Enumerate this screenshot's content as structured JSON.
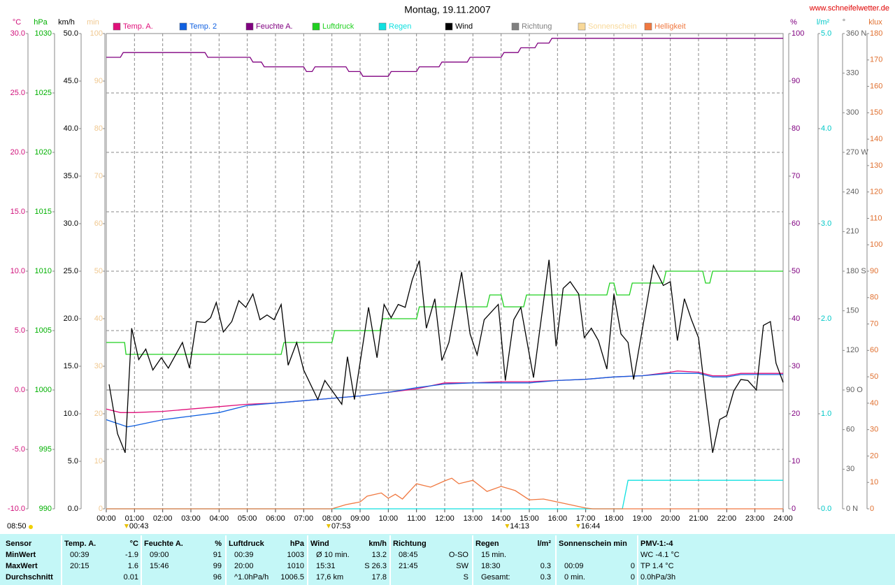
{
  "header": {
    "title": "Montag, 19.11.2007",
    "url": "www.schneifelwetter.de"
  },
  "chart_data": {
    "type": "line",
    "grid": true,
    "axes": {
      "temp": {
        "unit": "°C",
        "color": "#d0107a",
        "lim": [
          -10,
          30
        ],
        "ticks": [
          {
            "value": -10,
            "label": "-10.0"
          },
          {
            "value": -5,
            "label": "-5.0"
          },
          {
            "value": 0,
            "label": "0.0"
          },
          {
            "value": 5,
            "label": "5.0"
          },
          {
            "value": 10,
            "label": "10.0"
          },
          {
            "value": 15,
            "label": "15.0"
          },
          {
            "value": 20,
            "label": "20.0"
          },
          {
            "value": 25,
            "label": "25.0"
          },
          {
            "value": 30,
            "label": "30.0"
          }
        ]
      },
      "press": {
        "unit": "hPa",
        "color": "#00b000",
        "lim": [
          990,
          1030
        ],
        "ticks": [
          990,
          995,
          1000,
          1005,
          1010,
          1015,
          1020,
          1025,
          1030
        ]
      },
      "wind": {
        "unit": "km/h",
        "color": "#000000",
        "lim": [
          0,
          50
        ],
        "ticks": [
          {
            "value": 0,
            "label": "0.0"
          },
          {
            "value": 5,
            "label": "5.0"
          },
          {
            "value": 10,
            "label": "10.0"
          },
          {
            "value": 15,
            "label": "15.0"
          },
          {
            "value": 20,
            "label": "20.0"
          },
          {
            "value": 25,
            "label": "25.0"
          },
          {
            "value": 30,
            "label": "30.0"
          },
          {
            "value": 35,
            "label": "35.0"
          },
          {
            "value": 40,
            "label": "40.0"
          },
          {
            "value": 45,
            "label": "45.0"
          },
          {
            "value": 50,
            "label": "50.0"
          }
        ]
      },
      "sun": {
        "unit": "min",
        "color": "#f0c890",
        "lim": [
          0,
          100
        ],
        "ticks": [
          0,
          10,
          20,
          30,
          40,
          50,
          60,
          70,
          80,
          90,
          100
        ]
      },
      "hum": {
        "unit": "%",
        "color": "#800080",
        "lim": [
          0,
          100
        ],
        "ticks": [
          0,
          10,
          20,
          30,
          40,
          50,
          60,
          70,
          80,
          90,
          100
        ]
      },
      "rain": {
        "unit": "l/m²",
        "color": "#00c8c8",
        "lim": [
          0,
          5
        ],
        "ticks": [
          {
            "value": 0,
            "label": "0.0"
          },
          {
            "value": 1,
            "label": "1.0"
          },
          {
            "value": 2,
            "label": "2.0"
          },
          {
            "value": 3,
            "label": "3.0"
          },
          {
            "value": 4,
            "label": "4.0"
          },
          {
            "value": 5,
            "label": "5.0"
          }
        ]
      },
      "dir": {
        "unit": "°",
        "color": "#606060",
        "lim": [
          0,
          360
        ],
        "ticks": [
          {
            "value": 0,
            "label": "0 N"
          },
          30,
          60,
          {
            "value": 90,
            "label": "90 O"
          },
          120,
          150,
          {
            "value": 180,
            "label": "180 S"
          },
          210,
          240,
          {
            "value": 270,
            "label": "270 W"
          },
          300,
          330,
          {
            "value": 360,
            "label": "360 N"
          }
        ]
      },
      "lux": {
        "unit": "klux",
        "color": "#e07030",
        "lim": [
          0,
          180
        ],
        "ticks": [
          0,
          10,
          20,
          30,
          40,
          50,
          60,
          70,
          80,
          90,
          100,
          110,
          120,
          130,
          140,
          150,
          160,
          170,
          180
        ]
      }
    },
    "xlim": [
      0,
      24
    ],
    "xticks": [
      {
        "value": 0,
        "label": "00:00"
      },
      {
        "value": 1,
        "label": "01:00"
      },
      {
        "value": 2,
        "label": "02:00"
      },
      {
        "value": 3,
        "label": "03:00"
      },
      {
        "value": 4,
        "label": "04:00"
      },
      {
        "value": 5,
        "label": "05:00"
      },
      {
        "value": 6,
        "label": "06:00"
      },
      {
        "value": 7,
        "label": "07:00"
      },
      {
        "value": 8,
        "label": "08:00"
      },
      {
        "value": 9,
        "label": "09:00"
      },
      {
        "value": 10,
        "label": "10:00"
      },
      {
        "value": 11,
        "label": "11:00"
      },
      {
        "value": 12,
        "label": "12:00"
      },
      {
        "value": 13,
        "label": "13:00"
      },
      {
        "value": 14,
        "label": "14:00"
      },
      {
        "value": 15,
        "label": "15:00"
      },
      {
        "value": 16,
        "label": "16:00"
      },
      {
        "value": 17,
        "label": "17:00"
      },
      {
        "value": 18,
        "label": "18:00"
      },
      {
        "value": 19,
        "label": "19:00"
      },
      {
        "value": 20,
        "label": "20:00"
      },
      {
        "value": 21,
        "label": "21:00"
      },
      {
        "value": 22,
        "label": "22:00"
      },
      {
        "value": 23,
        "label": "23:00"
      },
      {
        "value": 24,
        "label": "24:00"
      }
    ],
    "series": [
      {
        "name": "Temp. A.",
        "color": "#e0107a",
        "axis": "temp",
        "x": [
          0,
          0.5,
          1,
          2,
          3,
          4,
          5,
          6,
          7,
          8,
          9,
          10,
          11,
          12,
          13,
          14,
          15,
          16,
          17,
          18,
          19,
          20,
          20.25,
          21,
          21.5,
          22,
          22.5,
          23,
          24
        ],
        "values": [
          -1.6,
          -1.9,
          -1.9,
          -1.8,
          -1.6,
          -1.4,
          -1.2,
          -1.1,
          -0.9,
          -0.7,
          -0.5,
          -0.2,
          0.1,
          0.6,
          0.6,
          0.7,
          0.7,
          0.8,
          0.9,
          1.1,
          1.2,
          1.5,
          1.6,
          1.5,
          1.2,
          1.2,
          1.4,
          1.4,
          1.4
        ]
      },
      {
        "name": "Temp. 2",
        "color": "#1060e0",
        "axis": "temp",
        "x": [
          0,
          0.75,
          1,
          2,
          3,
          4,
          5,
          6,
          7,
          8,
          9,
          10,
          11,
          12,
          13,
          14,
          15,
          16,
          17,
          18,
          19,
          20,
          21,
          21.5,
          22,
          22.5,
          24
        ],
        "values": [
          -2.5,
          -3.1,
          -3.0,
          -2.5,
          -2.2,
          -1.9,
          -1.3,
          -1.1,
          -0.9,
          -0.7,
          -0.5,
          -0.2,
          0.2,
          0.5,
          0.6,
          0.6,
          0.6,
          0.8,
          0.9,
          1.1,
          1.2,
          1.4,
          1.4,
          1.1,
          1.1,
          1.3,
          1.3
        ]
      },
      {
        "name": "Feuchte A.",
        "color": "#800080",
        "axis": "hum",
        "x": [
          0,
          0.5,
          0.6,
          3.5,
          3.6,
          5.1,
          5.2,
          5.5,
          5.6,
          7.0,
          7.1,
          7.3,
          7.4,
          8.5,
          8.6,
          9.0,
          9.1,
          10.0,
          10.1,
          11.0,
          11.1,
          11.8,
          11.9,
          12.8,
          12.9,
          14.0,
          14.1,
          14.6,
          14.7,
          15.2,
          15.3,
          15.7,
          15.8,
          24
        ],
        "values": [
          95,
          95,
          96,
          96,
          95,
          95,
          94,
          94,
          93,
          93,
          92,
          92,
          93,
          93,
          92,
          92,
          91,
          91,
          92,
          92,
          93,
          93,
          94,
          94,
          95,
          95,
          96,
          96,
          97,
          97,
          98,
          98,
          99,
          99
        ]
      },
      {
        "name": "Luftdruck",
        "color": "#20d020",
        "axis": "press",
        "x": [
          0,
          0.65,
          0.7,
          6.2,
          6.3,
          8.0,
          8.1,
          9.7,
          9.8,
          11.0,
          11.1,
          13.0,
          13.1,
          13.5,
          13.6,
          14.0,
          14.1,
          14.8,
          14.9,
          17.75,
          17.85,
          18.0,
          18.1,
          18.55,
          18.65,
          19.75,
          19.85,
          21.15,
          21.25,
          21.4,
          21.5,
          24
        ],
        "values": [
          1004,
          1004,
          1003,
          1003,
          1004,
          1004,
          1005,
          1005,
          1006,
          1006,
          1007,
          1007,
          1007,
          1007,
          1008,
          1008,
          1007,
          1007,
          1008,
          1008,
          1009,
          1009,
          1008,
          1008,
          1009,
          1009,
          1010,
          1010,
          1009,
          1009,
          1010,
          1010
        ]
      },
      {
        "name": "Regen",
        "color": "#10e0e0",
        "axis": "rain",
        "x": [
          0,
          18.3,
          18.5,
          24
        ],
        "values": [
          0,
          0,
          0.3,
          0.3
        ]
      },
      {
        "name": "Wind",
        "color": "#000000",
        "axis": "wind",
        "x": [
          0.1,
          0.4,
          0.67,
          0.9,
          1.15,
          1.4,
          1.65,
          1.95,
          2.2,
          2.7,
          2.95,
          3.2,
          3.5,
          3.7,
          3.9,
          4.15,
          4.45,
          4.7,
          4.95,
          5.2,
          5.45,
          5.7,
          5.95,
          6.2,
          6.45,
          6.75,
          7.0,
          7.5,
          7.75,
          8.35,
          8.55,
          8.8,
          9.3,
          9.6,
          9.85,
          10.1,
          10.35,
          10.6,
          10.85,
          11.1,
          11.35,
          11.65,
          11.9,
          12.15,
          12.6,
          12.9,
          13.15,
          13.4,
          13.9,
          14.15,
          14.45,
          14.7,
          15.15,
          15.7,
          15.95,
          16.2,
          16.45,
          16.75,
          16.95,
          17.2,
          17.45,
          17.75,
          18.0,
          18.25,
          18.5,
          18.7,
          19.4,
          19.75,
          20.0,
          20.25,
          20.5,
          20.75,
          21.0,
          21.25,
          21.5,
          21.75,
          22.0,
          22.25,
          22.5,
          22.75,
          23.05,
          23.3,
          23.55,
          23.75,
          24.0
        ],
        "values": [
          13.1,
          7.9,
          5.9,
          19.0,
          15.7,
          16.8,
          14.6,
          15.9,
          14.8,
          17.5,
          14.8,
          19.7,
          19.6,
          20.1,
          21.7,
          18.6,
          19.7,
          21.9,
          21.2,
          22.6,
          19.9,
          20.4,
          19.9,
          21.5,
          15.1,
          17.5,
          14.6,
          11.5,
          13.5,
          11.0,
          16.0,
          11.5,
          21.2,
          15.9,
          21.5,
          20.1,
          21.5,
          21.2,
          24.1,
          26.1,
          19.0,
          22.1,
          15.6,
          17.5,
          24.9,
          18.4,
          16.2,
          19.9,
          21.5,
          13.5,
          19.9,
          21.2,
          13.8,
          26.2,
          17.1,
          23.2,
          23.9,
          22.6,
          18.0,
          19.0,
          17.7,
          14.7,
          22.6,
          18.4,
          17.5,
          13.6,
          25.6,
          23.5,
          23.9,
          17.7,
          22.1,
          19.9,
          18.0,
          11.8,
          5.9,
          9.4,
          9.8,
          12.4,
          13.6,
          13.5,
          12.5,
          19.3,
          19.7,
          15.3,
          13.3
        ]
      },
      {
        "name": "Richtung",
        "color": "#808080",
        "axis": "dir",
        "x": [],
        "values": []
      },
      {
        "name": "Sonnenschein",
        "color": "#f8d898",
        "axis": "sun",
        "x": [],
        "values": []
      },
      {
        "name": "Helligkeit",
        "color": "#f07840",
        "axis": "lux",
        "x": [
          0,
          8.0,
          8.5,
          9.0,
          9.25,
          9.75,
          10.0,
          10.25,
          10.5,
          11.0,
          11.5,
          12.0,
          12.25,
          12.5,
          13.0,
          13.5,
          14.0,
          14.5,
          15.0,
          15.5,
          16.0,
          17.0,
          17.25,
          24
        ],
        "values": [
          0,
          0,
          1.6,
          2.6,
          4.8,
          6,
          4,
          5.5,
          3.7,
          9.5,
          8.2,
          10.6,
          11.6,
          9.5,
          10.8,
          6.6,
          8.5,
          6.9,
          3.4,
          3.7,
          2.6,
          0.3,
          0,
          0
        ]
      }
    ],
    "annotations": [
      {
        "text": "00:43",
        "x": 0.717
      },
      {
        "text": "07:53",
        "x": 7.883
      },
      {
        "text": "14:13",
        "x": 14.217
      },
      {
        "text": "16:44",
        "x": 16.733
      }
    ],
    "sunrise": "08:50"
  },
  "table": {
    "columns": [
      {
        "header": [
          "Sensor"
        ],
        "rows": [
          {
            "l": "MinWert"
          },
          {
            "l": "MaxWert"
          },
          {
            "l": "Durchschnitt"
          }
        ]
      },
      {
        "header": [
          "Temp. A.",
          "°C"
        ],
        "rows": [
          {
            "l": "00:39",
            "r": "-1.9"
          },
          {
            "l": "20:15",
            "r": "1.6"
          },
          {
            "r": "0.01"
          }
        ]
      },
      {
        "header": [
          "Feuchte A.",
          "%"
        ],
        "rows": [
          {
            "l": "09:00",
            "r": "91"
          },
          {
            "l": "15:46",
            "r": "99"
          },
          {
            "r": "96"
          }
        ]
      },
      {
        "header": [
          "Luftdruck",
          "hPa"
        ],
        "rows": [
          {
            "l": "00:39",
            "r": "1003"
          },
          {
            "l": "20:00",
            "r": "1010"
          },
          {
            "l": "^1.0hPa/h",
            "r": "1006.5"
          }
        ]
      },
      {
        "header": [
          "Wind",
          "km/h"
        ],
        "rows": [
          {
            "l": "Ø 10 min.",
            "r": "13.2"
          },
          {
            "l": "15:31",
            "r": "S 26.3"
          },
          {
            "l": "17,6 km",
            "r": "17.8"
          }
        ]
      },
      {
        "header": [
          "Richtung"
        ],
        "rows": [
          {
            "l": "08:45",
            "r": "O-SO"
          },
          {
            "l": "21:45",
            "r": "SW"
          },
          {
            "r": "S"
          }
        ]
      },
      {
        "header": [
          "Regen",
          "l/m²"
        ],
        "rows": [
          {
            "l": "15 min."
          },
          {
            "l": "18:30",
            "r": "0.3"
          },
          {
            "l": "Gesamt:",
            "r": "0.3"
          }
        ]
      },
      {
        "header": [
          "Sonnenschein min"
        ],
        "rows": [
          null,
          {
            "l": "00:09",
            "r": "0"
          },
          {
            "l": "0 min.",
            "r": "0"
          }
        ]
      },
      {
        "header": [
          "PMV-1:-4"
        ],
        "rows": [
          {
            "l": "WC -4.1 °C"
          },
          {
            "l": "TP 1.4 °C"
          },
          {
            "l": "0.0hPa/3h"
          }
        ]
      }
    ]
  }
}
